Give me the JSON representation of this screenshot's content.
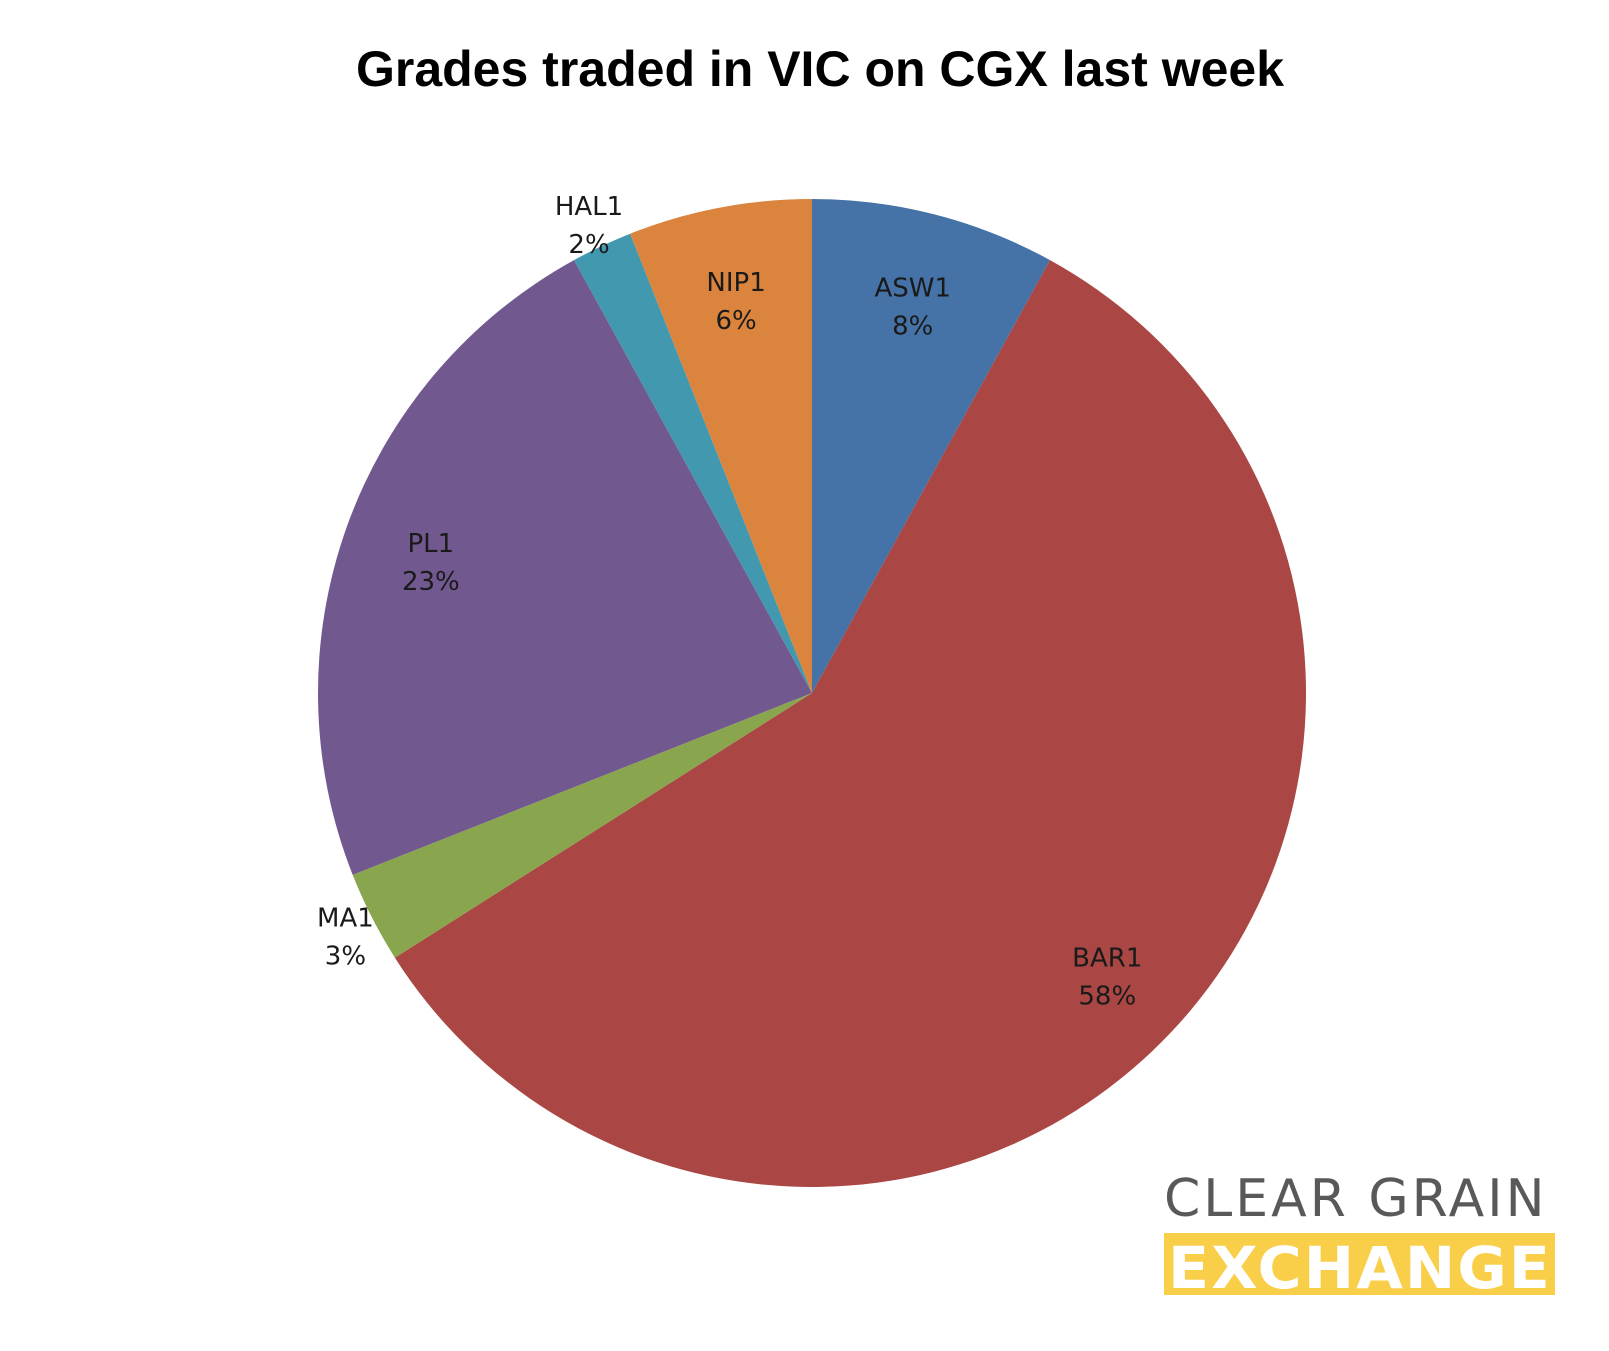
{
  "chart_data": {
    "type": "pie",
    "title": "Grades traded in VIC on CGX last week",
    "start_angle_deg": 0,
    "direction": "clockwise",
    "slices": [
      {
        "label": "ASW1",
        "value": 8,
        "percent_label": "8%",
        "color": "#4572a7"
      },
      {
        "label": "BAR1",
        "value": 58,
        "percent_label": "58%",
        "color": "#aa4643"
      },
      {
        "label": "MA1",
        "value": 3,
        "percent_label": "3%",
        "color": "#89a54e"
      },
      {
        "label": "PL1",
        "value": 23,
        "percent_label": "23%",
        "color": "#71588f"
      },
      {
        "label": "HAL1",
        "value": 2,
        "percent_label": "2%",
        "color": "#4198af"
      },
      {
        "label": "NIP1",
        "value": 6,
        "percent_label": "6%",
        "color": "#db843d"
      }
    ]
  },
  "logo": {
    "line1": "CLEAR GRAIN",
    "line2": "EXCHANGE",
    "line1_color": "#58595b",
    "band_color": "#f9cf4a"
  }
}
